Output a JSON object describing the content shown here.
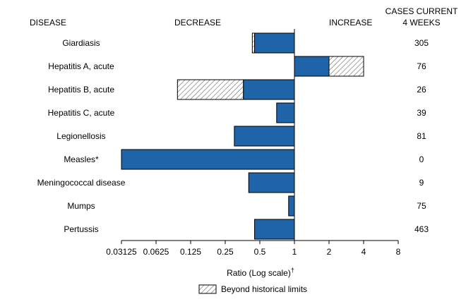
{
  "headers": {
    "disease": "DISEASE",
    "decrease": "DECREASE",
    "increase": "INCREASE",
    "cases_line1": "CASES CURRENT",
    "cases_line2": "4 WEEKS"
  },
  "chart_data": {
    "type": "bar",
    "orientation": "horizontal",
    "scale": "log2",
    "xlabel": "Ratio (Log scale)",
    "xlabel_mark": "†",
    "xlim": [
      0.03125,
      8
    ],
    "ticks": [
      0.03125,
      0.0625,
      0.125,
      0.25,
      0.5,
      1,
      2,
      4,
      8
    ],
    "tick_labels": [
      "0.03125",
      "0.0625",
      "0.125",
      "0.25",
      "0.5",
      "1",
      "2",
      "4",
      "8"
    ],
    "baseline": 1,
    "colors": {
      "bar": "#1f63a8",
      "beyond": "#ffffff",
      "hatch": "#666666"
    },
    "legend": {
      "label": "Beyond historical limits",
      "position": "bottom-center"
    },
    "categories": [
      "Giardiasis",
      "Hepatitis A, acute",
      "Hepatitis B, acute",
      "Hepatitis C, acute",
      "Legionellosis",
      "Measles*",
      "Meningococcal disease",
      "Mumps",
      "Pertussis"
    ],
    "ratios": [
      0.43,
      4.0,
      0.096,
      0.7,
      0.3,
      0.03125,
      0.4,
      0.89,
      0.45
    ],
    "beyond_limit": [
      0.45,
      2.0,
      0.36,
      null,
      null,
      null,
      null,
      null,
      null
    ],
    "cases": [
      "305",
      "76",
      "26",
      "39",
      "81",
      "0",
      "9",
      "75",
      "463"
    ]
  }
}
